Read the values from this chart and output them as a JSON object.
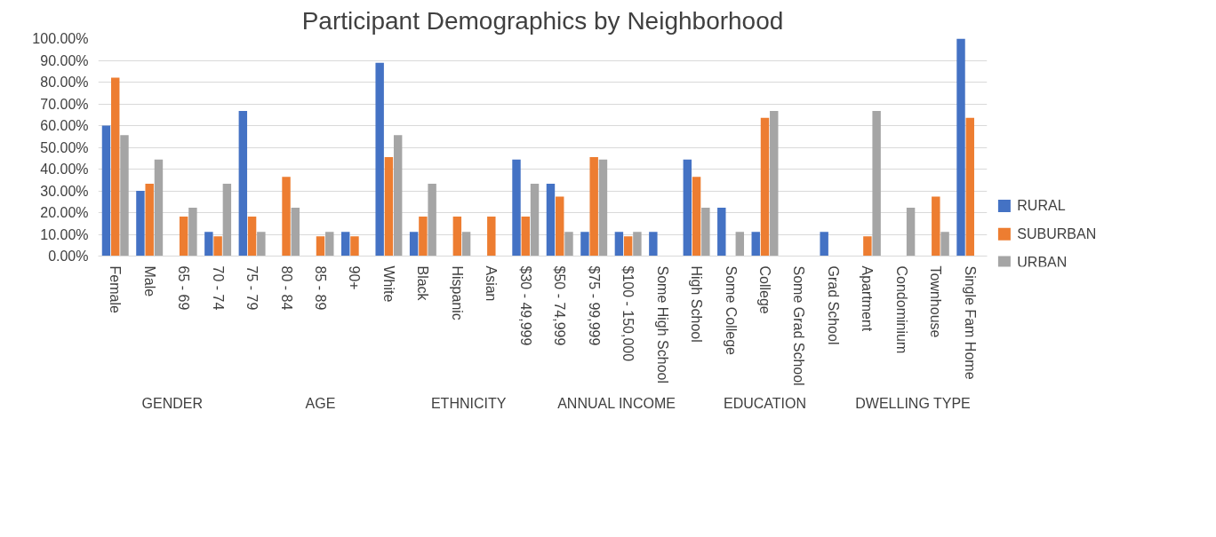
{
  "chart_data": {
    "type": "bar",
    "title": "Participant Demographics by Neighborhood",
    "categories": [
      "Female",
      "Male",
      "65 - 69",
      "70 - 74",
      "75 - 79",
      "80 - 84",
      "85 - 89",
      "90+",
      "White",
      "Black",
      "Hispanic",
      "Asian",
      "$30 - 49,999",
      "$50 - 74,999",
      "$75 - 99,999",
      "$100 - 150,000",
      "Some High School",
      "High School",
      "Some College",
      "College",
      "Some Grad School",
      "Grad School",
      "Apartment",
      "Condominium",
      "Townhouse",
      "Single Fam Home"
    ],
    "series": [
      {
        "name": "RURAL",
        "color": "#4472c4",
        "values": [
          60,
          30,
          0,
          11.1,
          66.7,
          0,
          0,
          11.1,
          88.9,
          11.1,
          0,
          0,
          44.4,
          33.3,
          11.1,
          11.1,
          11.1,
          44.4,
          22.2,
          11.1,
          0,
          11.1,
          0,
          0,
          0,
          100
        ]
      },
      {
        "name": "SUBURBAN",
        "color": "#ed7d31",
        "values": [
          82,
          33.3,
          18.2,
          9.1,
          18.2,
          36.4,
          9.1,
          9.1,
          45.5,
          18.2,
          18.2,
          18.2,
          18.2,
          27.3,
          45.5,
          9.1,
          0,
          36.4,
          0,
          63.6,
          0,
          0,
          9.1,
          0,
          27.3,
          63.6
        ]
      },
      {
        "name": "URBAN",
        "color": "#a5a5a5",
        "values": [
          55.6,
          44.4,
          22.2,
          33.3,
          11.1,
          22.2,
          11.1,
          0,
          55.6,
          33.3,
          11.1,
          0,
          33.3,
          11.1,
          44.4,
          11.1,
          0,
          22.2,
          11.1,
          66.7,
          0,
          0,
          66.7,
          22.2,
          11.1,
          0
        ]
      }
    ],
    "ylim": [
      0,
      100
    ],
    "yticks": [
      {
        "value": 0,
        "label": "0.00%"
      },
      {
        "value": 10,
        "label": "10.00%"
      },
      {
        "value": 20,
        "label": "20.00%"
      },
      {
        "value": 30,
        "label": "30.00%"
      },
      {
        "value": 40,
        "label": "40.00%"
      },
      {
        "value": 50,
        "label": "50.00%"
      },
      {
        "value": 60,
        "label": "60.00%"
      },
      {
        "value": 70,
        "label": "70.00%"
      },
      {
        "value": 80,
        "label": "80.00%"
      },
      {
        "value": 90,
        "label": "90.00%"
      },
      {
        "value": 100,
        "label": "100.00%"
      }
    ],
    "grid": "y",
    "legend": "right",
    "annotations": [
      "GENDER",
      "AGE",
      "ETHNICITY",
      "ANNUAL INCOME",
      "EDUCATION",
      "DWELLING TYPE"
    ]
  }
}
